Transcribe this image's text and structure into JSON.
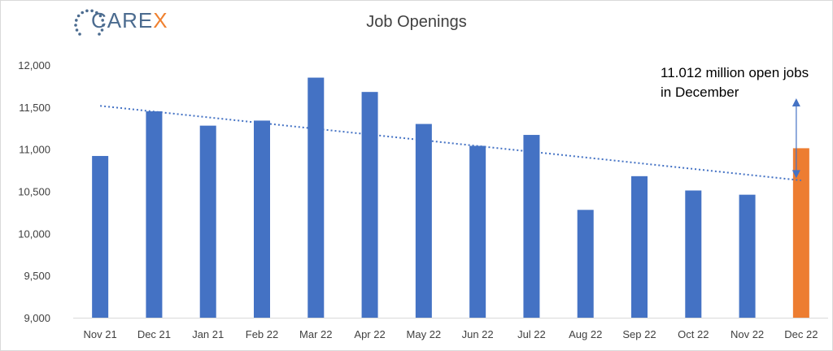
{
  "logo": {
    "text_main": "CARE",
    "text_accent": "X",
    "main_color": "#4b6b8f",
    "accent_color": "#f0812f"
  },
  "annotation": {
    "line1": "11.012 million open jobs",
    "line2": "in December"
  },
  "chart_data": {
    "type": "bar",
    "title": "Job Openings",
    "categories": [
      "Nov 21",
      "Dec 21",
      "Jan 21",
      "Feb 22",
      "Mar 22",
      "Apr 22",
      "May 22",
      "Jun 22",
      "Jul 22",
      "Aug 22",
      "Sep 22",
      "Oct 22",
      "Nov 22",
      "Dec 22"
    ],
    "values": [
      10920,
      11450,
      11280,
      11340,
      11850,
      11680,
      11300,
      11040,
      11170,
      10280,
      10680,
      10510,
      10460,
      11012
    ],
    "colors": {
      "default": "#4472c4",
      "highlight": "#ed7d31",
      "trend": "#4472c4",
      "axis": "#d9d9d9",
      "tick_text": "#404040"
    },
    "highlight_index": 13,
    "ylim": [
      9000,
      12000
    ],
    "yticks": [
      "9,000",
      "9,500",
      "10,000",
      "10,500",
      "11,000",
      "11,500",
      "12,000"
    ],
    "ytick_values": [
      9000,
      9500,
      10000,
      10500,
      11000,
      11500,
      12000
    ],
    "trendline": {
      "style": "dotted",
      "start": 11515,
      "end": 10630
    },
    "grid": false,
    "legend": "none"
  }
}
